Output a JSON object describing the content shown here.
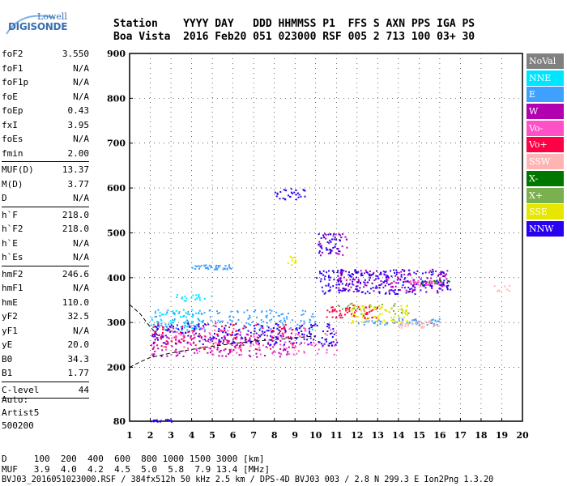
{
  "logo": {
    "line1": "Lowell",
    "line2": "DIGISONDE"
  },
  "header": {
    "row1": "Station    YYYY DAY   DDD HHMMSS P1  FFS S AXN PPS IGA PS",
    "row2": "Boa Vista  2016 Feb20 051 023000 RSF 005 2 713 100 03+ 30"
  },
  "params": [
    {
      "label": "foF2",
      "value": "3.550"
    },
    {
      "label": "foF1",
      "value": "N/A"
    },
    {
      "label": "foF1p",
      "value": "N/A"
    },
    {
      "label": "foE",
      "value": "N/A"
    },
    {
      "label": "foEp",
      "value": "0.43"
    },
    {
      "label": "fxI",
      "value": "3.95"
    },
    {
      "label": "foEs",
      "value": "N/A"
    },
    {
      "label": "fmin",
      "value": "2.00",
      "sep": true
    },
    {
      "label": "MUF(D)",
      "value": "13.37"
    },
    {
      "label": "M(D)",
      "value": "3.77"
    },
    {
      "label": "D",
      "value": "N/A",
      "sep": true
    },
    {
      "label": "h`F",
      "value": "218.0"
    },
    {
      "label": "h`F2",
      "value": "218.0"
    },
    {
      "label": "h`E",
      "value": "N/A"
    },
    {
      "label": "h`Es",
      "value": "N/A",
      "sep": true
    },
    {
      "label": "hmF2",
      "value": "246.6"
    },
    {
      "label": "hmF1",
      "value": "N/A"
    },
    {
      "label": "hmE",
      "value": "110.0"
    },
    {
      "label": "yF2",
      "value": "32.5"
    },
    {
      "label": "yF1",
      "value": "N/A"
    },
    {
      "label": "yE",
      "value": "20.0"
    },
    {
      "label": "B0",
      "value": "34.3"
    },
    {
      "label": "B1",
      "value": "1.77",
      "sep": true
    },
    {
      "label": "C-level",
      "value": "44",
      "sep": true
    }
  ],
  "auto": {
    "line1": "Auto:",
    "line2": "Artist5",
    "line3": "500200"
  },
  "legend": [
    {
      "label": "NoVal",
      "color": "#808080"
    },
    {
      "label": "NNE",
      "color": "#00e5ff"
    },
    {
      "label": "E",
      "color": "#3fa0ff"
    },
    {
      "label": "W",
      "color": "#b000b0"
    },
    {
      "label": "Vo-",
      "color": "#ff50c8"
    },
    {
      "label": "Vo+",
      "color": "#ff0044"
    },
    {
      "label": "SSW",
      "color": "#ffb4b4"
    },
    {
      "label": "X-",
      "color": "#007800"
    },
    {
      "label": "X+",
      "color": "#7ab050"
    },
    {
      "label": "SSE",
      "color": "#e6e600"
    },
    {
      "label": "NNW",
      "color": "#2a00f0"
    }
  ],
  "footer": {
    "d_row": "D     100  200  400  600  800 1000 1500 3000 [km]",
    "muf_row": "MUF   3.9  4.0  4.2  4.5  5.0  5.8  7.9 13.4 [MHz]",
    "file_row": "BVJ03_2016051023000.RSF / 384fx512h 50 kHz 2.5 km / DPS-4D BVJ03 003 / 2.8 N 299.3 E Ion2Png 1.3.20"
  },
  "chart_data": {
    "type": "scatter",
    "title": "",
    "xlabel": "",
    "ylabel": "",
    "xlim": [
      1,
      20
    ],
    "ylim": [
      80,
      900
    ],
    "grid": true,
    "x_ticks": [
      "1",
      "2",
      "3",
      "4",
      "5",
      "6",
      "7",
      "8",
      "9",
      "10",
      "11",
      "12",
      "13",
      "14",
      "15",
      "16",
      "17",
      "18",
      "19",
      "20"
    ],
    "y_ticks": [
      "80",
      "200",
      "300",
      "400",
      "500",
      "600",
      "700",
      "800",
      "900"
    ],
    "series": [
      {
        "name": "NNE",
        "color": "#00e5ff",
        "clusters": [
          {
            "x": [
              2.0,
              4.5
            ],
            "y": [
              280,
              330
            ],
            "n": 60
          },
          {
            "x": [
              3.0,
              5.0
            ],
            "y": [
              350,
              365
            ],
            "n": 20
          }
        ]
      },
      {
        "name": "E",
        "color": "#3fa0ff",
        "clusters": [
          {
            "x": [
              2.0,
              10.0
            ],
            "y": [
              285,
              330
            ],
            "n": 160
          },
          {
            "x": [
              4.0,
              6.0
            ],
            "y": [
              420,
              430
            ],
            "n": 40
          },
          {
            "x": [
              12.0,
              16.0
            ],
            "y": [
              295,
              310
            ],
            "n": 60
          }
        ]
      },
      {
        "name": "W",
        "color": "#b000b0",
        "clusters": [
          {
            "x": [
              2.0,
              9.0
            ],
            "y": [
              225,
              280
            ],
            "n": 140
          },
          {
            "x": [
              11.0,
              16.5
            ],
            "y": [
              370,
              420
            ],
            "n": 160
          },
          {
            "x": [
              10.0,
              11.5
            ],
            "y": [
              450,
              500
            ],
            "n": 30
          }
        ]
      },
      {
        "name": "Vo-",
        "color": "#ff50c8",
        "clusters": [
          {
            "x": [
              2.0,
              11.0
            ],
            "y": [
              230,
              290
            ],
            "n": 160
          },
          {
            "x": [
              14.5,
              16.0
            ],
            "y": [
              385,
              395
            ],
            "n": 30
          }
        ]
      },
      {
        "name": "Vo+",
        "color": "#ff0044",
        "clusters": [
          {
            "x": [
              2.0,
              9.0
            ],
            "y": [
              240,
              300
            ],
            "n": 120
          },
          {
            "x": [
              10.5,
              13.0
            ],
            "y": [
              310,
              340
            ],
            "n": 60
          }
        ]
      },
      {
        "name": "SSW",
        "color": "#ffb4b4",
        "clusters": [
          {
            "x": [
              14.0,
              16.0
            ],
            "y": [
              290,
              305
            ],
            "n": 40
          },
          {
            "x": [
              18.5,
              19.5
            ],
            "y": [
              370,
              385
            ],
            "n": 8
          }
        ]
      },
      {
        "name": "X-",
        "color": "#007800",
        "clusters": [
          {
            "x": [
              15.0,
              16.5
            ],
            "y": [
              385,
              395
            ],
            "n": 12
          }
        ]
      },
      {
        "name": "X+",
        "color": "#7ab050",
        "clusters": [
          {
            "x": [
              11.0,
              14.5
            ],
            "y": [
              320,
              345
            ],
            "n": 30
          }
        ]
      },
      {
        "name": "SSE",
        "color": "#e6e600",
        "clusters": [
          {
            "x": [
              11.5,
              14.5
            ],
            "y": [
              300,
              340
            ],
            "n": 80
          },
          {
            "x": [
              8.5,
              9.0
            ],
            "y": [
              430,
              450
            ],
            "n": 12
          }
        ]
      },
      {
        "name": "NNW",
        "color": "#2a00f0",
        "clusters": [
          {
            "x": [
              2.0,
              11.0
            ],
            "y": [
              250,
              300
            ],
            "n": 200
          },
          {
            "x": [
              10.0,
              16.5
            ],
            "y": [
              365,
              420
            ],
            "n": 220
          },
          {
            "x": [
              8.0,
              9.5
            ],
            "y": [
              575,
              600
            ],
            "n": 30
          },
          {
            "x": [
              10.0,
              11.2
            ],
            "y": [
              455,
              500
            ],
            "n": 40
          },
          {
            "x": [
              2.0,
              3.0
            ],
            "y": [
              80,
              85
            ],
            "n": 20
          }
        ]
      }
    ],
    "profile_curves": [
      {
        "x": [
          1.0,
          1.5,
          2.0,
          2.4
        ],
        "y": [
          340,
          320,
          290,
          270
        ]
      },
      {
        "x": [
          1.0,
          1.5,
          2.0,
          3.0,
          4.0,
          5.0,
          6.0,
          7.0,
          8.0,
          9.0,
          10.0
        ],
        "y": [
          200,
          212,
          222,
          232,
          240,
          247,
          253,
          258,
          262,
          266,
          270
        ]
      }
    ]
  }
}
